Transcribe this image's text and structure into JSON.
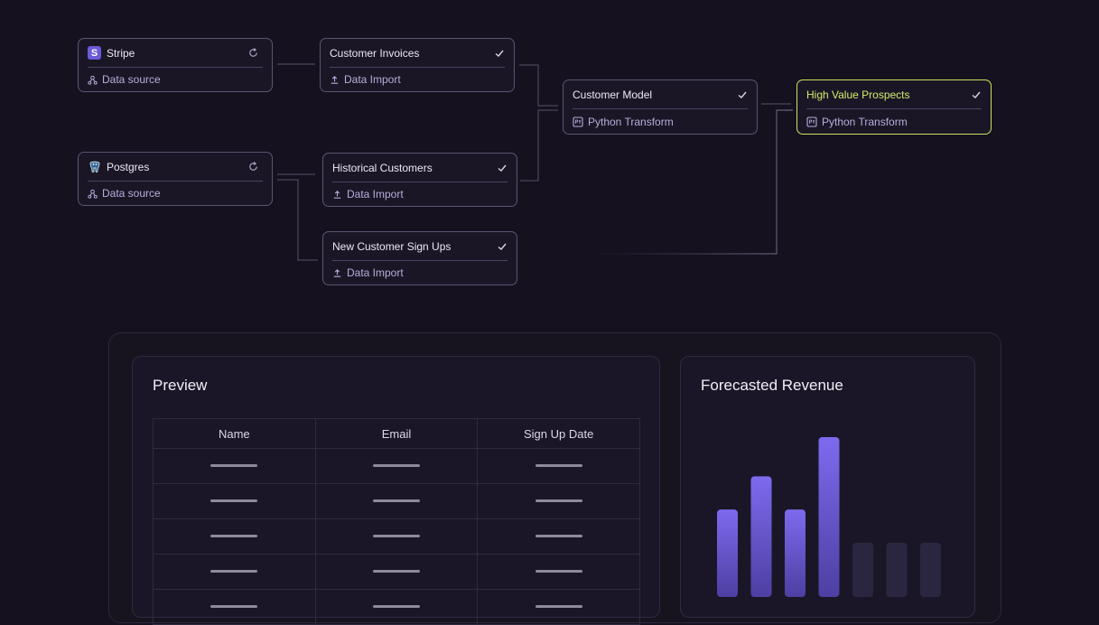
{
  "pipeline": {
    "nodes": [
      {
        "title": "Stripe",
        "subtitle": "Data source"
      },
      {
        "title": "Postgres",
        "subtitle": "Data source"
      },
      {
        "title": "Customer Invoices",
        "subtitle": "Data Import"
      },
      {
        "title": "Historical Customers",
        "subtitle": "Data Import"
      },
      {
        "title": "New Customer Sign Ups",
        "subtitle": "Data Import"
      },
      {
        "title": "Customer Model",
        "subtitle": "Python Transform"
      },
      {
        "title": "High Value Prospects",
        "subtitle": "Python Transform"
      }
    ]
  },
  "preview": {
    "title": "Preview",
    "columns": [
      "Name",
      "Email",
      "Sign Up Date"
    ],
    "row_count": 5
  },
  "forecast": {
    "title": "Forecasted Revenue"
  },
  "chart_data": {
    "type": "bar",
    "title": "Forecasted Revenue",
    "values": [
      0.52,
      0.74,
      0.52,
      1.0,
      0.3,
      0.3,
      0.3
    ],
    "highlighted": [
      true,
      true,
      true,
      true,
      false,
      false,
      false
    ],
    "colors": {
      "actual": "#7b68e8",
      "forecast": "#2b2640"
    }
  },
  "colors": {
    "background": "#15111f",
    "node_border": "#5b5670",
    "highlight": "#c9e45c",
    "accent": "#6b5bd8"
  }
}
